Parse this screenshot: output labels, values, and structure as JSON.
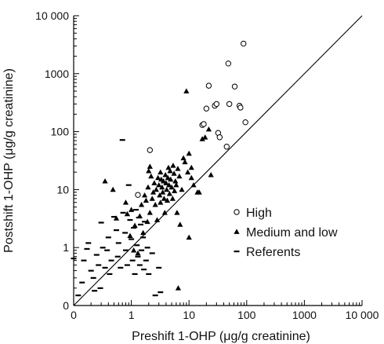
{
  "chart_data": {
    "type": "scatter",
    "title": "",
    "xlabel": "Preshift 1-OHP (μg/g creatinine)",
    "ylabel": "Postshift 1-OHP (μg/g creatinine)",
    "x_scale": "log",
    "y_scale": "log",
    "xlim": [
      0.1,
      10000
    ],
    "ylim": [
      0.1,
      10000
    ],
    "x_tick_labels": [
      "0",
      "1",
      "10",
      "100",
      "1000",
      "10 000"
    ],
    "y_tick_labels": [
      "0",
      "1",
      "10",
      "100",
      "1000",
      "10 000"
    ],
    "x_tick_values": [
      0.1,
      1,
      10,
      100,
      1000,
      10000
    ],
    "y_tick_values": [
      0.1,
      1,
      10,
      100,
      1000,
      10000
    ],
    "reference_line": "y = x",
    "grid": false,
    "legend_position": "bottom-right",
    "series": [
      {
        "name": "High",
        "marker": "open-circle",
        "points": [
          [
            1.3,
            8.1
          ],
          [
            2.1,
            48
          ],
          [
            20,
            250
          ],
          [
            22,
            620
          ],
          [
            28,
            280
          ],
          [
            30,
            300
          ],
          [
            32,
            95
          ],
          [
            34,
            80
          ],
          [
            17,
            130
          ],
          [
            18,
            135
          ],
          [
            45,
            55
          ],
          [
            48,
            1500
          ],
          [
            50,
            300
          ],
          [
            62,
            600
          ],
          [
            75,
            280
          ],
          [
            78,
            260
          ],
          [
            88,
            3300
          ],
          [
            95,
            145
          ]
        ]
      },
      {
        "name": "Medium and low",
        "marker": "filled-triangle",
        "points": [
          [
            0.35,
            14
          ],
          [
            0.48,
            10
          ],
          [
            0.55,
            3.2
          ],
          [
            0.8,
            6
          ],
          [
            0.85,
            3.8
          ],
          [
            0.95,
            1.6
          ],
          [
            1.0,
            4.5
          ],
          [
            1.1,
            0.9
          ],
          [
            1.15,
            2.4
          ],
          [
            1.3,
            0.8
          ],
          [
            1.4,
            3.5
          ],
          [
            1.5,
            5.5
          ],
          [
            1.6,
            1.8
          ],
          [
            1.7,
            8
          ],
          [
            1.8,
            6.5
          ],
          [
            1.9,
            2.8
          ],
          [
            1.95,
            11
          ],
          [
            2.0,
            21
          ],
          [
            2.1,
            25
          ],
          [
            2.1,
            4
          ],
          [
            2.2,
            17
          ],
          [
            2.3,
            7
          ],
          [
            2.4,
            9
          ],
          [
            2.5,
            13
          ],
          [
            2.6,
            5.5
          ],
          [
            2.7,
            10
          ],
          [
            2.8,
            3
          ],
          [
            2.9,
            16
          ],
          [
            3.0,
            12
          ],
          [
            3.1,
            8
          ],
          [
            3.2,
            6
          ],
          [
            3.2,
            20
          ],
          [
            3.3,
            15
          ],
          [
            3.4,
            11
          ],
          [
            3.5,
            9
          ],
          [
            3.6,
            14
          ],
          [
            3.7,
            7
          ],
          [
            3.8,
            4
          ],
          [
            3.9,
            18
          ],
          [
            4.0,
            13
          ],
          [
            4.1,
            10
          ],
          [
            4.2,
            6.5
          ],
          [
            4.3,
            16
          ],
          [
            4.4,
            24
          ],
          [
            4.5,
            12
          ],
          [
            4.6,
            8.5
          ],
          [
            4.7,
            21
          ],
          [
            4.8,
            15
          ],
          [
            5.0,
            11
          ],
          [
            5.2,
            7
          ],
          [
            5.3,
            26
          ],
          [
            5.5,
            19
          ],
          [
            5.6,
            9.5
          ],
          [
            5.8,
            14
          ],
          [
            6.0,
            12
          ],
          [
            6.2,
            4
          ],
          [
            6.4,
            23
          ],
          [
            6.5,
            0.2
          ],
          [
            6.8,
            17
          ],
          [
            7.0,
            2.5
          ],
          [
            7.5,
            10
          ],
          [
            8.0,
            35
          ],
          [
            8.5,
            30
          ],
          [
            9.0,
            500
          ],
          [
            9.5,
            20
          ],
          [
            10,
            42
          ],
          [
            10,
            1.5
          ],
          [
            11,
            24
          ],
          [
            11,
            16
          ],
          [
            12,
            12
          ],
          [
            14,
            9
          ],
          [
            15,
            9
          ],
          [
            17,
            75
          ],
          [
            19,
            80
          ],
          [
            22,
            110
          ],
          [
            24,
            18
          ]
        ]
      },
      {
        "name": "Referents",
        "marker": "dash",
        "points": [
          [
            0.1,
            0.65
          ],
          [
            0.12,
            0.15
          ],
          [
            0.14,
            0.25
          ],
          [
            0.15,
            0.6
          ],
          [
            0.17,
            0.95
          ],
          [
            0.18,
            1.2
          ],
          [
            0.2,
            0.4
          ],
          [
            0.22,
            0.3
          ],
          [
            0.23,
            0.18
          ],
          [
            0.25,
            0.75
          ],
          [
            0.27,
            0.5
          ],
          [
            0.29,
            0.2
          ],
          [
            0.3,
            2.7
          ],
          [
            0.32,
            1.0
          ],
          [
            0.35,
            0.45
          ],
          [
            0.38,
            0.9
          ],
          [
            0.4,
            1.5
          ],
          [
            0.42,
            0.35
          ],
          [
            0.45,
            0.6
          ],
          [
            0.5,
            3.4
          ],
          [
            0.55,
            2.0
          ],
          [
            0.58,
            0.7
          ],
          [
            0.6,
            1.2
          ],
          [
            0.65,
            0.45
          ],
          [
            0.7,
            72
          ],
          [
            0.72,
            4.0
          ],
          [
            0.78,
            1.8
          ],
          [
            0.8,
            0.9
          ],
          [
            0.85,
            0.5
          ],
          [
            0.9,
            12
          ],
          [
            0.95,
            3.0
          ],
          [
            1.0,
            1.4
          ],
          [
            1.05,
            0.6
          ],
          [
            1.1,
            2.2
          ],
          [
            1.15,
            0.35
          ],
          [
            1.2,
            4.5
          ],
          [
            1.25,
            1.1
          ],
          [
            1.3,
            0.7
          ],
          [
            1.35,
            3.3
          ],
          [
            1.4,
            0.5
          ],
          [
            1.45,
            2.5
          ],
          [
            1.5,
            0.9
          ],
          [
            1.6,
            1.5
          ],
          [
            1.65,
            0.42
          ],
          [
            1.7,
            2.8
          ],
          [
            1.8,
            0.6
          ],
          [
            1.9,
            1.0
          ],
          [
            2.0,
            0.35
          ],
          [
            2.3,
            0.8
          ],
          [
            2.6,
            0.15
          ],
          [
            3.0,
            0.45
          ],
          [
            3.2,
            0.17
          ]
        ]
      }
    ]
  }
}
